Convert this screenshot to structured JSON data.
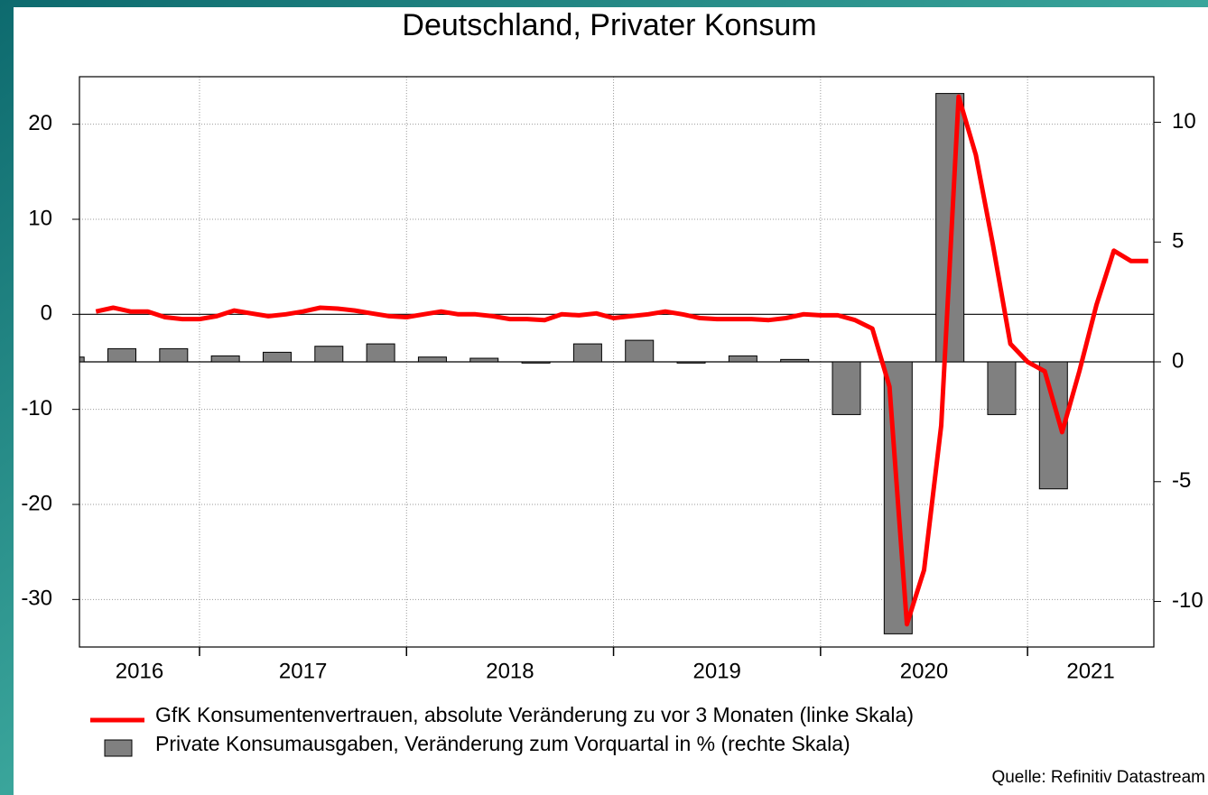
{
  "chart_data": {
    "type": "combo",
    "title": "Deutschland, Privater Konsum",
    "source": "Quelle: Refinitiv Datastream",
    "xlim": [
      2016.42,
      2021.61
    ],
    "xticks": [
      2017,
      2018,
      2019,
      2020,
      2021
    ],
    "xtick_labels": [
      2016,
      2017,
      2018,
      2019,
      2020,
      2021
    ],
    "ylim": [
      -35,
      25
    ],
    "yticks": [
      -30,
      -20,
      -10,
      0,
      10,
      20
    ],
    "y2lim": [
      -11.9,
      11.9
    ],
    "y2ticks": [
      -10,
      -5,
      0,
      5,
      10
    ],
    "grid": true,
    "series": [
      {
        "name": "GfK Konsumentenvertrauen, absolute Veränderung zu vor 3 Monaten  (linke Skala)",
        "type": "line",
        "color": "#ff0000",
        "x": [
          2016.5,
          2016.583,
          2016.667,
          2016.75,
          2016.833,
          2016.917,
          2017.0,
          2017.083,
          2017.167,
          2017.25,
          2017.333,
          2017.417,
          2017.5,
          2017.583,
          2017.667,
          2017.75,
          2017.833,
          2017.917,
          2018.0,
          2018.083,
          2018.167,
          2018.25,
          2018.333,
          2018.417,
          2018.5,
          2018.583,
          2018.667,
          2018.75,
          2018.833,
          2018.917,
          2019.0,
          2019.083,
          2019.167,
          2019.25,
          2019.333,
          2019.417,
          2019.5,
          2019.583,
          2019.667,
          2019.75,
          2019.833,
          2019.917,
          2020.0,
          2020.083,
          2020.167,
          2020.25,
          2020.333,
          2020.417,
          2020.5,
          2020.583,
          2020.667,
          2020.75,
          2020.833,
          2020.917,
          2021.0,
          2021.083,
          2021.167,
          2021.25,
          2021.333,
          2021.417,
          2021.5,
          2021.583
        ],
        "values": [
          0.3,
          0.7,
          0.3,
          0.3,
          -0.3,
          -0.5,
          -0.5,
          -0.2,
          0.4,
          0.1,
          -0.2,
          0,
          0.3,
          0.7,
          0.6,
          0.4,
          0.1,
          -0.2,
          -0.3,
          0,
          0.3,
          0,
          0,
          -0.2,
          -0.5,
          -0.5,
          -0.6,
          0,
          -0.1,
          0.1,
          -0.4,
          -0.2,
          0,
          0.3,
          0,
          -0.4,
          -0.5,
          -0.5,
          -0.5,
          -0.6,
          -0.4,
          0,
          -0.1,
          -0.1,
          -0.6,
          -1.5,
          -7.6,
          -32.6,
          -26.9,
          -11.7,
          22.9,
          16.8,
          7.3,
          -3.1,
          -5.0,
          -6.0,
          -12.4,
          -6.0,
          1.0,
          6.7,
          5.6,
          5.6
        ]
      },
      {
        "name": "Private Konsumausgaben, Veränderung zum Vorquartal in % (rechte Skala)",
        "type": "bar",
        "color": "#808080",
        "axis": "y2",
        "x": [
          2016.375,
          2016.625,
          2016.875,
          2017.125,
          2017.375,
          2017.625,
          2017.875,
          2018.125,
          2018.375,
          2018.625,
          2018.875,
          2019.125,
          2019.375,
          2019.625,
          2019.875,
          2020.125,
          2020.375,
          2020.625,
          2020.875,
          2021.125
        ],
        "values": [
          0.2,
          0.55,
          0.55,
          0.25,
          0.4,
          0.65,
          0.75,
          0.2,
          0.15,
          -0.05,
          0.75,
          0.9,
          -0.05,
          0.25,
          0.1,
          -2.2,
          -11.35,
          11.2,
          -2.2,
          -5.3
        ]
      }
    ]
  }
}
